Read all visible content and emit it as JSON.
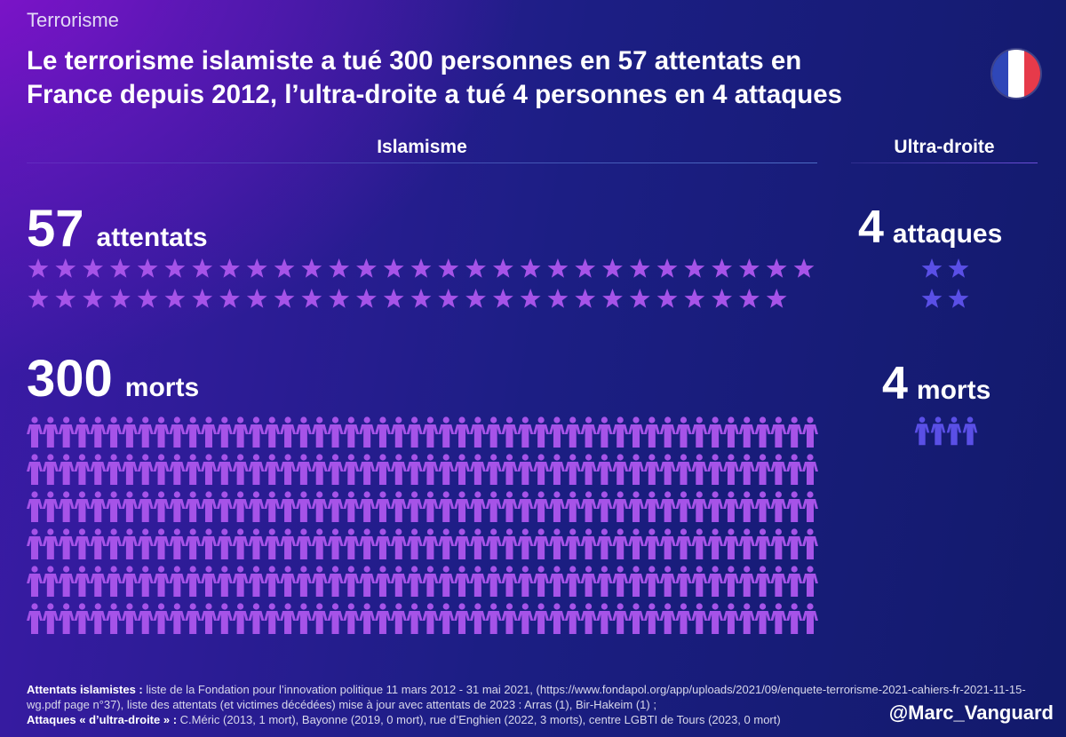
{
  "kicker": "Terrorisme",
  "title_line1": "Le terrorisme islamiste a tué 300 personnes en 57 attentats en",
  "title_line2": "France depuis 2012, l’ultra-droite a tué 4 personnes en 4 attaques",
  "flag_colors": [
    "#2f47b8",
    "#ffffff",
    "#e63a4a"
  ],
  "colors": {
    "islamisme_icon": "#a653e8",
    "ultra_droite_icon": "#5a4fe6",
    "islamisme_rule": "#4d6cc5",
    "ultra_droite_rule": "#6d4fd9"
  },
  "columns": {
    "islamisme": {
      "header": "Islamisme",
      "attacks_number": "57",
      "attacks_label": "attentats",
      "deaths_number": "300",
      "deaths_label": "morts"
    },
    "ultra_droite": {
      "header": "Ultra-droite",
      "attacks_number": "4",
      "attacks_label": "attaques",
      "deaths_number": "4",
      "deaths_label": "morts"
    }
  },
  "chart_data": {
    "type": "pictogram",
    "title": "Le terrorisme islamiste a tué 300 personnes en 57 attentats en France depuis 2012, l’ultra-droite a tué 4 personnes en 4 attaques",
    "categories": [
      "Islamisme",
      "Ultra-droite"
    ],
    "series": [
      {
        "name": "attentats / attaques",
        "icon": "star",
        "values": [
          57,
          4
        ]
      },
      {
        "name": "morts",
        "icon": "person",
        "values": [
          300,
          4
        ]
      }
    ]
  },
  "footer": {
    "label1": "Attentats islamistes :",
    "text1": " liste de la Fondation pour l’innovation politique 11 mars 2012 - 31 mai 2021, (https://www.fondapol.org/app/uploads/2021/09/enquete-terrorisme-2021-cahiers-fr-2021-11-15-wg.pdf page n°37), liste des attentats (et victimes décédées) mise à jour avec attentats de 2023 : Arras (1), Bir-Hakeim (1) ;",
    "label2": "Attaques « d’ultra-droite » :",
    "text2": " C.Méric (2013, 1 mort), Bayonne (2019, 0 mort), rue d’Enghien (2022, 3 morts), centre LGBTI de Tours (2023, 0 mort)"
  },
  "handle": "@Marc_Vanguard"
}
